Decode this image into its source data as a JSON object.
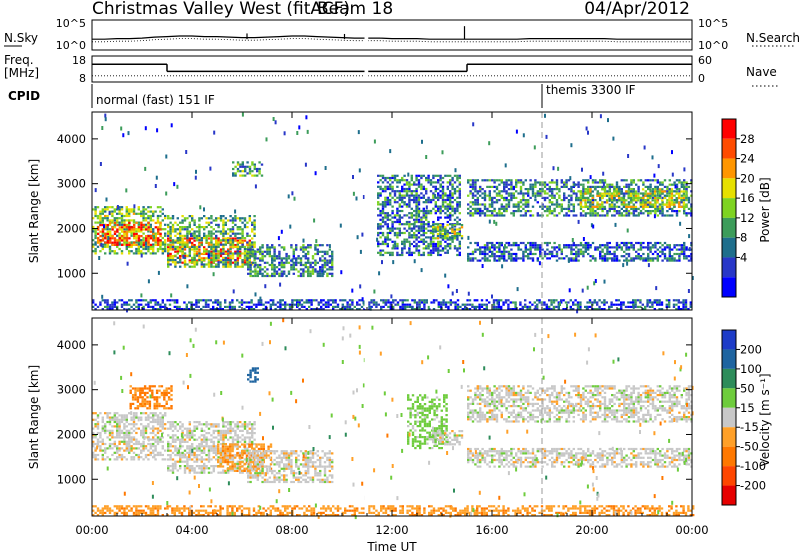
{
  "header": {
    "station": "Christmas Valley West (fitACF)",
    "beam": "Beam 18",
    "date": "04/Apr/2012"
  },
  "chart_data": [
    {
      "type": "line",
      "panel": "noise",
      "left_label": "N.Sky",
      "right_label": "N.Search",
      "left_ticks": [
        "10^5",
        "10^0"
      ],
      "right_ticks": [
        "10^5",
        "10^0"
      ],
      "series": [
        {
          "values": [
            1.7,
            1.7,
            1.8,
            1.8,
            1.9,
            2.1,
            2.2,
            2.3,
            2.3,
            2.2,
            2.2,
            2.1,
            2.0,
            2.0,
            2.1,
            2.2,
            2.3,
            2.3,
            2.2,
            2.1,
            2.0,
            1.9,
            1.9,
            1.9,
            1.8,
            1.8,
            1.8,
            1.7,
            1.7,
            1.7,
            1.7,
            1.7,
            1.7,
            1.7,
            1.7,
            1.8,
            1.8,
            1.8,
            1.8,
            1.8,
            1.8,
            1.8,
            1.7,
            1.7,
            1.7,
            1.7,
            1.7,
            1.7,
            1.7
          ]
        }
      ],
      "spikes": [
        {
          "t": 14.9,
          "v": 4.2
        },
        {
          "t": 6.2,
          "v": 2.8
        },
        {
          "t": 10.1,
          "v": 2.7
        }
      ]
    },
    {
      "type": "line",
      "panel": "frequency",
      "left_label": "Freq.",
      "left_unit": "[MHz]",
      "right_label": "Nave",
      "left_ticks": [
        "18",
        "8"
      ],
      "right_ticks": [
        "60",
        "0"
      ],
      "freq_steps": [
        {
          "start": 0,
          "end": 3,
          "value": 15
        },
        {
          "start": 3,
          "end": 15,
          "value": 12
        },
        {
          "start": 15,
          "end": 24,
          "value": 15
        }
      ],
      "nave": 13
    },
    {
      "type": "table",
      "panel": "cpid",
      "label": "CPID",
      "programs": [
        {
          "name": "normal (fast) 151 IF",
          "start": 0,
          "end": 18
        },
        {
          "name": "themis 3300 IF",
          "start": 18,
          "end": 24
        }
      ]
    },
    {
      "type": "heatmap",
      "panel": "power",
      "ylabel": "Slant Range [km]",
      "yticks": [
        1000,
        2000,
        3000,
        4000
      ],
      "ylim": [
        180,
        4600
      ],
      "colorbar_label": "Power [dB]",
      "colorbar_ticks": [
        "28",
        "24",
        "20",
        "16",
        "12",
        "8",
        "4"
      ],
      "colorbar_colors": [
        "#ff0000",
        "#ff4b00",
        "#ff9600",
        "#e6e000",
        "#7ed321",
        "#3c9c5a",
        "#1e6e8c",
        "#2837c8",
        "#0000ff"
      ],
      "regions": [
        {
          "t0": 0.0,
          "t1": 2.9,
          "r0": 1450,
          "r1": 2500,
          "level": 0.45
        },
        {
          "t0": 0.2,
          "t1": 2.7,
          "r0": 1650,
          "r1": 2150,
          "level": 0.85
        },
        {
          "t0": 3.0,
          "t1": 6.4,
          "r0": 1250,
          "r1": 1800,
          "level": 0.85
        },
        {
          "t0": 3.0,
          "t1": 6.5,
          "r0": 1150,
          "r1": 2300,
          "level": 0.4
        },
        {
          "t0": 6.2,
          "t1": 9.6,
          "r0": 950,
          "r1": 1650,
          "level": 0.3
        },
        {
          "t0": 5.6,
          "t1": 6.8,
          "r0": 3200,
          "r1": 3500,
          "level": 0.35
        },
        {
          "t0": 11.4,
          "t1": 14.7,
          "r0": 1400,
          "r1": 3200,
          "level": 0.25
        },
        {
          "t0": 13.6,
          "t1": 14.8,
          "r0": 1800,
          "r1": 2100,
          "level": 0.5
        },
        {
          "t0": 15.0,
          "t1": 24.0,
          "r0": 2300,
          "r1": 3100,
          "level": 0.3
        },
        {
          "t0": 19.5,
          "t1": 23.8,
          "r0": 2500,
          "r1": 2900,
          "level": 0.55
        },
        {
          "t0": 15.0,
          "t1": 24.0,
          "r0": 1300,
          "r1": 1700,
          "level": 0.2
        },
        {
          "t0": 0.0,
          "t1": 24.0,
          "r0": 180,
          "r1": 420,
          "level": 0.15
        }
      ]
    },
    {
      "type": "heatmap",
      "panel": "velocity",
      "ylabel": "Slant Range [km]",
      "yticks": [
        1000,
        2000,
        3000,
        4000
      ],
      "ylim": [
        180,
        4600
      ],
      "colorbar_label": "Velocity [m s⁻¹]",
      "colorbar_ticks": [
        "200",
        "100",
        "50",
        "15",
        "-15",
        "-50",
        "-100",
        "-200"
      ],
      "colorbar_colors": [
        "#1e3cc8",
        "#1e64a0",
        "#2d8c5a",
        "#6ecc3c",
        "#c8c8c8",
        "#ffa028",
        "#ff7800",
        "#ff4600",
        "#e60000"
      ],
      "regions": [
        {
          "t0": 0.0,
          "t1": 2.9,
          "r0": 1450,
          "r1": 2500,
          "vel": 0
        },
        {
          "t0": 3.0,
          "t1": 6.5,
          "r0": 1150,
          "r1": 2300,
          "vel": 0
        },
        {
          "t0": 5.0,
          "t1": 7.2,
          "r0": 1200,
          "r1": 1800,
          "vel": -40
        },
        {
          "t0": 6.2,
          "t1": 9.6,
          "r0": 950,
          "r1": 1650,
          "vel": 0
        },
        {
          "t0": 1.5,
          "t1": 3.2,
          "r0": 2600,
          "r1": 3100,
          "vel": -60
        },
        {
          "t0": 6.2,
          "t1": 6.6,
          "r0": 3200,
          "r1": 3500,
          "vel": 180
        },
        {
          "t0": 12.6,
          "t1": 14.2,
          "r0": 1700,
          "r1": 2900,
          "vel": 30
        },
        {
          "t0": 13.6,
          "t1": 14.8,
          "r0": 1800,
          "r1": 2100,
          "vel": 0
        },
        {
          "t0": 15.0,
          "t1": 24.0,
          "r0": 2300,
          "r1": 3100,
          "vel": 0
        },
        {
          "t0": 15.0,
          "t1": 24.0,
          "r0": 1300,
          "r1": 1700,
          "vel": 0
        },
        {
          "t0": 0.0,
          "t1": 24.0,
          "r0": 180,
          "r1": 420,
          "vel": -40
        }
      ]
    }
  ],
  "xaxis": {
    "label": "Time UT",
    "ticks": [
      {
        "t": 0,
        "label": "00:00"
      },
      {
        "t": 4,
        "label": "04:00"
      },
      {
        "t": 8,
        "label": "08:00"
      },
      {
        "t": 12,
        "label": "12:00"
      },
      {
        "t": 16,
        "label": "16:00"
      },
      {
        "t": 20,
        "label": "20:00"
      },
      {
        "t": 24,
        "label": "00:00"
      }
    ],
    "xlim": [
      0,
      24
    ],
    "data_gap": [
      10.9,
      11.05
    ],
    "dashed_marker": 18
  }
}
